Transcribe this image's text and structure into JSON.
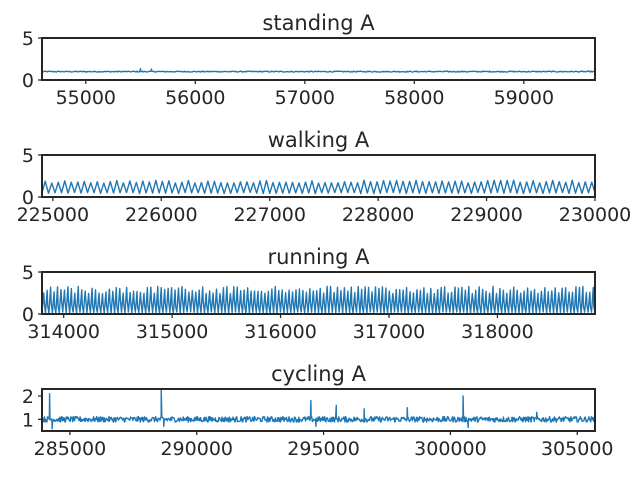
{
  "chart_data": [
    {
      "type": "line",
      "title": "standing A",
      "xlabel": "",
      "ylabel": "",
      "xlim": [
        54600,
        59650
      ],
      "ylim": [
        0,
        5
      ],
      "xticks": [
        55000,
        56000,
        57000,
        58000,
        59000
      ],
      "xtick_labels": [
        "55000",
        "56000",
        "57000",
        "58000",
        "59000"
      ],
      "yticks": [
        0,
        5
      ],
      "ytick_labels": [
        "0",
        "5"
      ],
      "color": "#1f77b4",
      "pattern": "flat",
      "baseline": 1.0,
      "amplitude": 0.06,
      "spikes": [
        {
          "x": 55500,
          "y": 1.35
        },
        {
          "x": 55600,
          "y": 1.3
        }
      ]
    },
    {
      "type": "line",
      "title": "walking A",
      "xlabel": "",
      "ylabel": "",
      "xlim": [
        224900,
        230000
      ],
      "ylim": [
        0,
        5
      ],
      "xticks": [
        225000,
        226000,
        227000,
        228000,
        229000,
        230000
      ],
      "xtick_labels": [
        "225000",
        "226000",
        "227000",
        "228000",
        "229000",
        "230000"
      ],
      "yticks": [
        0,
        5
      ],
      "ytick_labels": [
        "0",
        "5"
      ],
      "color": "#1f77b4",
      "pattern": "oscillation",
      "low": 0.4,
      "high": 2.0,
      "cycles": 85
    },
    {
      "type": "line",
      "title": "running A",
      "xlabel": "",
      "ylabel": "",
      "xlim": [
        313800,
        318900
      ],
      "ylim": [
        0,
        5
      ],
      "xticks": [
        314000,
        315000,
        316000,
        317000,
        318000
      ],
      "xtick_labels": [
        "314000",
        "315000",
        "316000",
        "317000",
        "318000"
      ],
      "yticks": [
        0,
        5
      ],
      "ytick_labels": [
        "0",
        "5"
      ],
      "color": "#1f77b4",
      "pattern": "dense",
      "low": 0.1,
      "high": 3.3,
      "cycles": 160
    },
    {
      "type": "line",
      "title": "cycling A",
      "xlabel": "",
      "ylabel": "",
      "xlim": [
        283900,
        305700
      ],
      "ylim": [
        0.5,
        2.3
      ],
      "xticks": [
        285000,
        290000,
        295000,
        300000,
        305000
      ],
      "xtick_labels": [
        "285000",
        "290000",
        "295000",
        "300000",
        "305000"
      ],
      "yticks": [
        1,
        2
      ],
      "ytick_labels": [
        "1",
        "2"
      ],
      "color": "#1f77b4",
      "pattern": "noisy",
      "baseline": 1.0,
      "amplitude": 0.12,
      "spikes": [
        {
          "x": 284200,
          "y": 2.1
        },
        {
          "x": 284300,
          "y": 0.6
        },
        {
          "x": 288600,
          "y": 2.25
        },
        {
          "x": 288700,
          "y": 0.7
        },
        {
          "x": 294500,
          "y": 1.8
        },
        {
          "x": 294700,
          "y": 0.7
        },
        {
          "x": 295500,
          "y": 1.6
        },
        {
          "x": 296600,
          "y": 1.45
        },
        {
          "x": 298300,
          "y": 1.5
        },
        {
          "x": 300500,
          "y": 2.0
        },
        {
          "x": 300700,
          "y": 0.65
        },
        {
          "x": 303400,
          "y": 1.3
        }
      ]
    }
  ]
}
